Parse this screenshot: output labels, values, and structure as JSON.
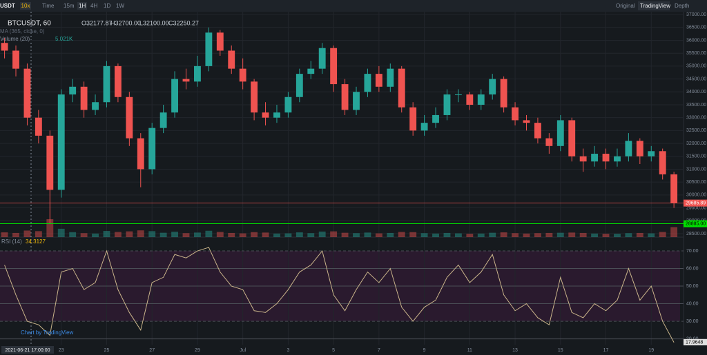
{
  "toolbar": {
    "symbol": "USDT",
    "leverage": "10x",
    "intervals": [
      "Time",
      "15m",
      "1H",
      "4H",
      "1D",
      "1W"
    ],
    "views": [
      "Original",
      "TradingView",
      "Depth"
    ]
  },
  "legend": {
    "symbol": "BTCUSDT, 60",
    "open": "O32177.87",
    "high": "H32700.00",
    "low": "L32100.00",
    "close": "C32250.27",
    "ma": "MA (365, close, 0)",
    "volume": "Volume (20)",
    "volume_value": "5.021K",
    "rsi": "RSI (14)",
    "rsi_value": "34.3127",
    "crosshair": "2021-06-21 17:00:00",
    "watermark": "Chart by TradingView"
  },
  "chart_data": {
    "type": "candlestick",
    "up_color": "#26a69a",
    "down_color": "#ef5350",
    "x": [
      20.5,
      21,
      21.5,
      22,
      22.5,
      23,
      23.5,
      24,
      24.5,
      25,
      25.5,
      26,
      26.5,
      27,
      27.5,
      28,
      28.5,
      29,
      29.5,
      30,
      30.5,
      31,
      31.5,
      32,
      32.5,
      33,
      33.5,
      34,
      34.5,
      35,
      35.5,
      36,
      36.5,
      37,
      37.5,
      38,
      38.5,
      39,
      39.5,
      40,
      40.5,
      41,
      41.5,
      42,
      42.5,
      43,
      43.5,
      44,
      44.5,
      45,
      45.5,
      46,
      46.5,
      47,
      47.5,
      48,
      48.5,
      49,
      49.5,
      50
    ],
    "open": [
      35900,
      35600,
      34900,
      33000,
      32300,
      30200,
      33900,
      34200,
      33300,
      33600,
      35000,
      33800,
      32200,
      31000,
      32600,
      33200,
      34500,
      34400,
      35000,
      36300,
      35600,
      34900,
      34400,
      33200,
      33000,
      33200,
      33800,
      34700,
      34900,
      35700,
      34300,
      33300,
      34000,
      34700,
      34200,
      34900,
      33400,
      32500,
      32800,
      33100,
      33900,
      33900,
      33500,
      33900,
      34500,
      33400,
      32900,
      32800,
      32200,
      31900,
      32900,
      31500,
      31300,
      31600,
      31300,
      31500,
      32100,
      31500,
      31700,
      30800
    ],
    "high": [
      36100,
      35800,
      35100,
      33300,
      32500,
      34100,
      34500,
      34400,
      33900,
      35200,
      35100,
      34000,
      32400,
      32800,
      33500,
      34800,
      34900,
      35400,
      36500,
      36400,
      35800,
      35300,
      34500,
      33600,
      33500,
      34000,
      34900,
      35200,
      35900,
      35800,
      34500,
      34200,
      34900,
      35000,
      35100,
      35000,
      33600,
      33100,
      33400,
      34100,
      34100,
      34000,
      34100,
      34700,
      34600,
      33600,
      33100,
      33000,
      32400,
      33100,
      33000,
      31800,
      31900,
      31800,
      31800,
      32400,
      32200,
      31900,
      31800,
      30900
    ],
    "low": [
      35300,
      34600,
      32700,
      32000,
      28900,
      29900,
      33600,
      33000,
      33100,
      33400,
      33600,
      31900,
      30300,
      30800,
      32400,
      33000,
      34100,
      34200,
      34800,
      35400,
      34700,
      34100,
      32900,
      32700,
      32800,
      33000,
      33600,
      34500,
      34700,
      34000,
      33100,
      33100,
      33800,
      34000,
      34000,
      33200,
      32300,
      32300,
      32600,
      32900,
      33600,
      33300,
      33300,
      33700,
      33200,
      32700,
      32500,
      32000,
      31600,
      31700,
      31300,
      30900,
      31100,
      31000,
      31100,
      31300,
      31200,
      31300,
      30600,
      29500
    ],
    "close": [
      35600,
      34900,
      33000,
      32300,
      30200,
      33900,
      34200,
      33300,
      33600,
      35000,
      33800,
      32200,
      31000,
      32600,
      33200,
      34500,
      34400,
      35000,
      36300,
      35600,
      34900,
      34400,
      33200,
      33000,
      33200,
      33800,
      34700,
      34900,
      35700,
      34300,
      33300,
      34000,
      34700,
      34200,
      34900,
      33400,
      32500,
      32800,
      33100,
      33900,
      33900,
      33500,
      33900,
      34500,
      33400,
      32900,
      32800,
      32200,
      31900,
      32900,
      31500,
      31300,
      31600,
      31300,
      31500,
      32100,
      31500,
      31700,
      30800,
      29685.89
    ],
    "volume": [
      2400,
      2100,
      3300,
      3000,
      9000,
      4200,
      2500,
      2000,
      1800,
      3100,
      2600,
      2900,
      3400,
      3000,
      2200,
      2700,
      2000,
      2300,
      3200,
      2600,
      2100,
      1900,
      2500,
      2300,
      1800,
      1900,
      2400,
      2000,
      2800,
      2900,
      2200,
      2000,
      2300,
      1900,
      2100,
      2600,
      2500,
      2000,
      1800,
      2100,
      1900,
      1700,
      1800,
      2200,
      2400,
      2000,
      1800,
      2000,
      2100,
      2200,
      2300,
      2100,
      1800,
      1700,
      1700,
      2000,
      2100,
      1900,
      2600,
      5021
    ],
    "ylim": [
      28365,
      37110
    ],
    "yticks": [
      {
        "value": 28500,
        "label": "28500.00"
      },
      {
        "value": 29000,
        "label": "29000.00"
      },
      {
        "value": 29500,
        "label": "29500.00"
      },
      {
        "value": 30000,
        "label": "30000.00"
      },
      {
        "value": 30500,
        "label": "30500.00"
      },
      {
        "value": 31000,
        "label": "31000.00"
      },
      {
        "value": 31500,
        "label": "31500.00"
      },
      {
        "value": 32000,
        "label": "32000.00"
      },
      {
        "value": 32500,
        "label": "32500.00"
      },
      {
        "value": 33000,
        "label": "33000.00"
      },
      {
        "value": 33500,
        "label": "33500.00"
      },
      {
        "value": 34000,
        "label": "34000.00"
      },
      {
        "value": 34500,
        "label": "34500.00"
      },
      {
        "value": 35000,
        "label": "35000.00"
      },
      {
        "value": 35500,
        "label": "35500.00"
      },
      {
        "value": 36000,
        "label": "36000.00"
      },
      {
        "value": 36500,
        "label": "36500.00"
      },
      {
        "value": 37000,
        "label": "37000.00"
      }
    ],
    "level_line": {
      "value": 28885,
      "label": "28885.00",
      "color": "#00e000"
    },
    "xlim": [
      20.3,
      50.27
    ],
    "xticks": [
      23,
      25,
      27,
      29,
      {
        "value": 31,
        "label": "Jul"
      },
      {
        "value": 33,
        "label": "3"
      },
      {
        "value": 35,
        "label": "5"
      },
      {
        "value": 37,
        "label": "7"
      },
      {
        "value": 39,
        "label": "9"
      },
      {
        "value": 41,
        "label": "11"
      },
      {
        "value": 43,
        "label": "13"
      },
      {
        "value": 45,
        "label": "15"
      },
      {
        "value": 47,
        "label": "17"
      },
      {
        "value": 49,
        "label": "19"
      }
    ],
    "rsi": {
      "color": "#c9b48a",
      "values": [
        62,
        45,
        30,
        28,
        22,
        58,
        60,
        48,
        52,
        70,
        48,
        35,
        25,
        52,
        55,
        68,
        66,
        70,
        72,
        58,
        50,
        48,
        36,
        35,
        40,
        48,
        58,
        62,
        70,
        45,
        36,
        48,
        58,
        52,
        60,
        38,
        30,
        38,
        42,
        55,
        62,
        52,
        58,
        68,
        45,
        36,
        40,
        32,
        28,
        55,
        35,
        32,
        40,
        36,
        42,
        60,
        42,
        50,
        30,
        17.9648
      ],
      "ylim": [
        16.7,
        75.5
      ],
      "band": [
        30,
        70
      ],
      "yticks": [
        {
          "value": 20,
          "label": "20.00"
        },
        {
          "value": 30,
          "label": "30.00"
        },
        {
          "value": 40,
          "label": "40.00"
        },
        {
          "value": 50,
          "label": "50.00"
        },
        {
          "value": 60,
          "label": "60.00"
        },
        {
          "value": 70,
          "label": "70.00"
        }
      ]
    }
  }
}
